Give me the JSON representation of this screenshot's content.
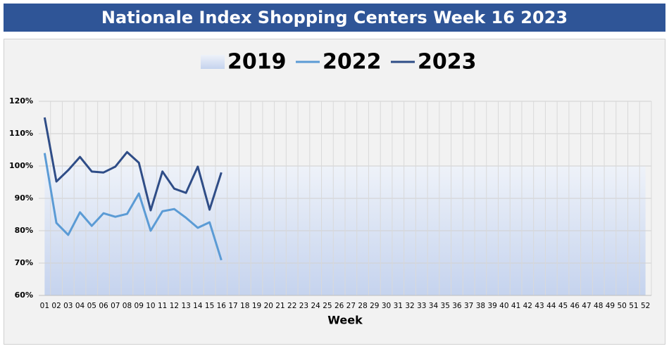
{
  "chart_data": {
    "type": "line",
    "title": "Nationale Index Shopping Centers Week 16 2023",
    "x_label": "Week",
    "categories": [
      "01",
      "02",
      "03",
      "04",
      "05",
      "06",
      "07",
      "08",
      "09",
      "10",
      "11",
      "12",
      "13",
      "14",
      "15",
      "16",
      "17",
      "18",
      "19",
      "20",
      "21",
      "22",
      "23",
      "24",
      "25",
      "26",
      "27",
      "28",
      "29",
      "30",
      "31",
      "32",
      "33",
      "34",
      "35",
      "36",
      "37",
      "38",
      "39",
      "40",
      "41",
      "42",
      "43",
      "44",
      "45",
      "46",
      "47",
      "48",
      "49",
      "50",
      "51",
      "52"
    ],
    "series": [
      {
        "name": "2019",
        "kind": "area",
        "color": "#b4c7e7",
        "values": [
          100,
          100,
          100,
          100,
          100,
          100,
          100,
          100,
          100,
          100,
          100,
          100,
          100,
          100,
          100,
          100,
          100,
          100,
          100,
          100,
          100,
          100,
          100,
          100,
          100,
          100,
          100,
          100,
          100,
          100,
          100,
          100,
          100,
          100,
          100,
          100,
          100,
          100,
          100,
          100,
          100,
          100,
          100,
          100,
          100,
          100,
          100,
          100,
          100,
          100,
          100,
          100
        ]
      },
      {
        "name": "2022",
        "color": "#5b9bd5",
        "values": [
          104,
          82.4,
          78.7,
          85.7,
          81.5,
          85.4,
          84.3,
          85.2,
          91.5,
          80,
          86,
          86.7,
          84,
          80.9,
          82.6,
          70.9,
          null,
          null,
          null,
          null,
          null,
          null,
          null,
          null,
          null,
          null,
          null,
          null,
          null,
          null,
          null,
          null,
          null,
          null,
          null,
          null,
          null,
          null,
          null,
          null,
          null,
          null,
          null,
          null,
          null,
          null,
          null,
          null,
          null,
          null,
          null,
          null
        ]
      },
      {
        "name": "2023",
        "color": "#2f4d87",
        "values": [
          115,
          95.2,
          98.7,
          102.8,
          98.3,
          98,
          99.8,
          104.3,
          101,
          86.3,
          98.3,
          93,
          91.7,
          99.8,
          86.5,
          98,
          null,
          null,
          null,
          null,
          null,
          null,
          null,
          null,
          null,
          null,
          null,
          null,
          null,
          null,
          null,
          null,
          null,
          null,
          null,
          null,
          null,
          null,
          null,
          null,
          null,
          null,
          null,
          null,
          null,
          null,
          null,
          null,
          null,
          null,
          null,
          null
        ]
      }
    ],
    "ylim": [
      60,
      120
    ],
    "yticks": [
      {
        "value": 60,
        "label": "60%"
      },
      {
        "value": 70,
        "label": "70%"
      },
      {
        "value": 80,
        "label": "80%"
      },
      {
        "value": 90,
        "label": "90%"
      },
      {
        "value": 100,
        "label": "100%"
      },
      {
        "value": 110,
        "label": "110%"
      },
      {
        "value": 120,
        "label": "120%"
      }
    ],
    "grid": true,
    "legend": "top"
  }
}
